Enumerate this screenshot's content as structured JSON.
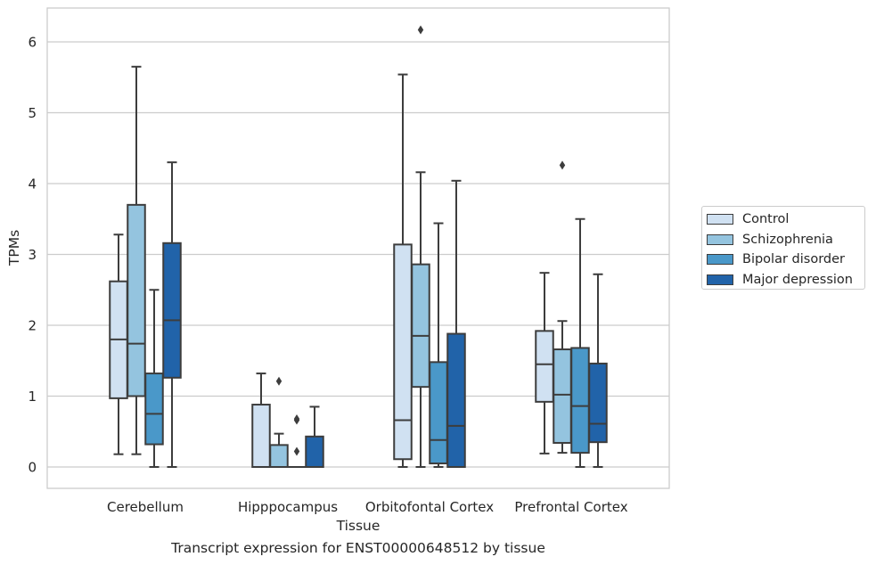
{
  "colors": {
    "Control": "#d0e1f2",
    "Schizophrenia": "#94c4df",
    "Bipolar disorder": "#4a98c9",
    "Major depression": "#2163a9",
    "edge": "#3d3d3d",
    "grid": "#cccccc"
  },
  "caption": "Transcript expression for ENST00000648512 by tissue",
  "chart_data": {
    "type": "box",
    "xlabel": "Tissue",
    "ylabel": "TPMs",
    "ylim": [
      -0.3,
      6.5
    ],
    "yticks": [
      0,
      1,
      2,
      3,
      4,
      5,
      6
    ],
    "grid": true,
    "legend_position": "right",
    "categories": [
      "Cerebellum",
      "Hipppocampus",
      "Orbitofontal Cortex",
      "Prefrontal Cortex"
    ],
    "series": [
      {
        "name": "Control",
        "boxes": [
          {
            "whislo": 0.18,
            "q1": 0.97,
            "med": 1.8,
            "q3": 2.62,
            "whishi": 3.28,
            "fliers": []
          },
          {
            "whislo": 0.0,
            "q1": 0.0,
            "med": 0.0,
            "q3": 0.88,
            "whishi": 1.32,
            "fliers": []
          },
          {
            "whislo": 0.0,
            "q1": 0.11,
            "med": 0.66,
            "q3": 3.14,
            "whishi": 5.54,
            "fliers": []
          },
          {
            "whislo": 0.19,
            "q1": 0.92,
            "med": 1.45,
            "q3": 1.92,
            "whishi": 2.74,
            "fliers": []
          }
        ]
      },
      {
        "name": "Schizophrenia",
        "boxes": [
          {
            "whislo": 0.18,
            "q1": 1.0,
            "med": 1.74,
            "q3": 3.7,
            "whishi": 5.65,
            "fliers": []
          },
          {
            "whislo": 0.0,
            "q1": 0.0,
            "med": 0.0,
            "q3": 0.31,
            "whishi": 0.47,
            "fliers": [
              1.21
            ]
          },
          {
            "whislo": 0.0,
            "q1": 1.13,
            "med": 1.85,
            "q3": 2.86,
            "whishi": 4.16,
            "fliers": [
              6.17
            ]
          },
          {
            "whislo": 0.2,
            "q1": 0.34,
            "med": 1.02,
            "q3": 1.66,
            "whishi": 2.06,
            "fliers": [
              4.26
            ]
          }
        ]
      },
      {
        "name": "Bipolar disorder",
        "boxes": [
          {
            "whislo": 0.0,
            "q1": 0.32,
            "med": 0.75,
            "q3": 1.32,
            "whishi": 2.5,
            "fliers": []
          },
          {
            "whislo": 0.0,
            "q1": 0.0,
            "med": 0.0,
            "q3": 0.0,
            "whishi": 0.0,
            "fliers": [
              0.22,
              0.66,
              0.68
            ]
          },
          {
            "whislo": 0.0,
            "q1": 0.05,
            "med": 0.38,
            "q3": 1.48,
            "whishi": 3.44,
            "fliers": []
          },
          {
            "whislo": 0.0,
            "q1": 0.2,
            "med": 0.86,
            "q3": 1.68,
            "whishi": 3.5,
            "fliers": []
          }
        ]
      },
      {
        "name": "Major depression",
        "boxes": [
          {
            "whislo": 0.0,
            "q1": 1.26,
            "med": 2.07,
            "q3": 3.16,
            "whishi": 4.3,
            "fliers": []
          },
          {
            "whislo": 0.0,
            "q1": 0.0,
            "med": 0.0,
            "q3": 0.43,
            "whishi": 0.85,
            "fliers": []
          },
          {
            "whislo": 0.0,
            "q1": 0.0,
            "med": 0.58,
            "q3": 1.88,
            "whishi": 4.04,
            "fliers": []
          },
          {
            "whislo": 0.0,
            "q1": 0.35,
            "med": 0.61,
            "q3": 1.46,
            "whishi": 2.72,
            "fliers": []
          }
        ]
      }
    ]
  }
}
